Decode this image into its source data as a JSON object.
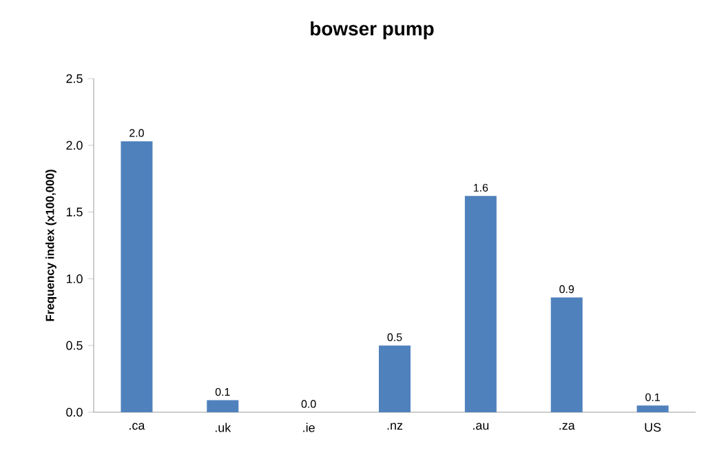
{
  "chart_data": {
    "type": "bar",
    "title": "bowser pump",
    "ylabel": "Frequency index (x100,000)",
    "categories": [
      ".ca",
      ".uk",
      ".ie",
      ".nz",
      ".au",
      ".za",
      "US"
    ],
    "values": [
      2.03,
      0.09,
      0.0,
      0.5,
      1.62,
      0.86,
      0.05
    ],
    "value_labels": [
      "2.0",
      "0.1",
      "0.0",
      "0.5",
      "1.6",
      "0.9",
      "0.1"
    ],
    "color": "#4f81bd",
    "ylim": [
      0,
      2.5
    ],
    "yticks": [
      {
        "value": 0,
        "label": "0.0"
      },
      {
        "value": 0.5,
        "label": "0.5"
      },
      {
        "value": 1,
        "label": "1.0"
      },
      {
        "value": 1.5,
        "label": "1.5"
      },
      {
        "value": 2,
        "label": "2.0"
      },
      {
        "value": 2.5,
        "label": "2.5"
      }
    ]
  }
}
